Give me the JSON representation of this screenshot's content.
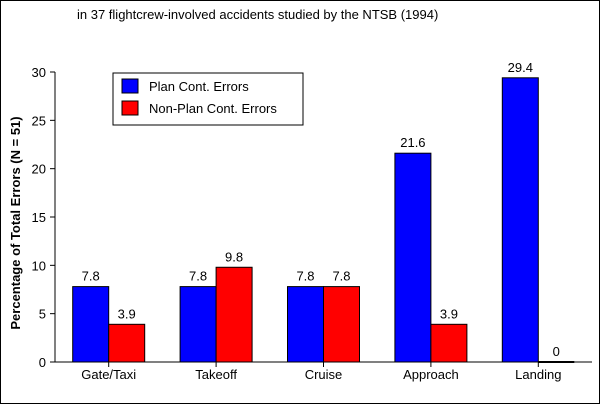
{
  "chart_data": {
    "type": "bar",
    "title": "in 37 flightcrew-involved accidents studied by the NTSB (1994)",
    "xlabel": "",
    "ylabel": "Percentage of Total Errors (N = 51)",
    "ylim": [
      0,
      30
    ],
    "yticks": [
      0,
      5,
      10,
      15,
      20,
      25,
      30
    ],
    "categories": [
      "Gate/Taxi",
      "Takeoff",
      "Cruise",
      "Approach",
      "Landing"
    ],
    "series": [
      {
        "name": "Plan Cont. Errors",
        "color": "#0000ff",
        "values": [
          7.8,
          7.8,
          7.8,
          21.6,
          29.4
        ],
        "labels": [
          "7.8",
          "7.8",
          "7.8",
          "21.6",
          "29.4"
        ]
      },
      {
        "name": "Non-Plan Cont. Errors",
        "color": "#ff0000",
        "values": [
          3.9,
          9.8,
          7.8,
          3.9,
          0
        ],
        "labels": [
          "3.9",
          "9.8",
          "7.8",
          "3.9",
          "0"
        ]
      }
    ],
    "legend_position": "top-left",
    "grid": false
  }
}
